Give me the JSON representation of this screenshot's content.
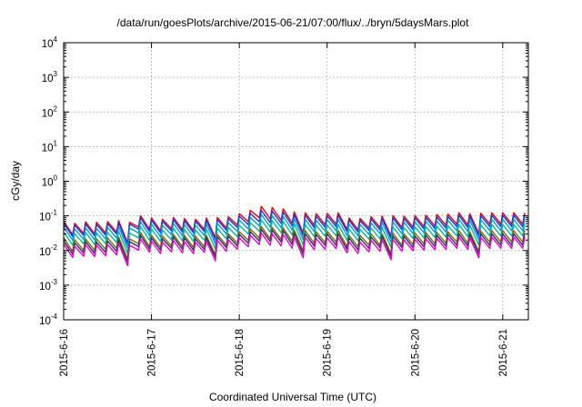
{
  "chart_data": {
    "type": "line",
    "title": "/data/run/goesPlots/archive/2015-06-21/07:00/flux/../bryn/5daysMars.plot",
    "xlabel": "Coordinated Universal Time (UTC)",
    "ylabel": "cGy/day",
    "yscale": "log",
    "ylim": [
      0.0001,
      10000
    ],
    "xlim": [
      "2015-06-16 00:00",
      "2015-06-21 07:00"
    ],
    "x_ticks": [
      "2015-6-16",
      "2015-6-17",
      "2015-6-18",
      "2015-6-19",
      "2015-6-20",
      "2015-6-21"
    ],
    "y_ticks": [
      {
        "base": "10",
        "exp": "4"
      },
      {
        "base": "10",
        "exp": "3"
      },
      {
        "base": "10",
        "exp": "2"
      },
      {
        "base": "10",
        "exp": "1"
      },
      {
        "base": "10",
        "exp": "0"
      },
      {
        "base": "10",
        "exp": "-1"
      },
      {
        "base": "10",
        "exp": "-2"
      },
      {
        "base": "10",
        "exp": "-3"
      },
      {
        "base": "10",
        "exp": "-4"
      }
    ],
    "grid": true,
    "legend": "none",
    "sample_interval_hours": 3,
    "series": [
      {
        "color": "#ee0000",
        "values": [
          0.048,
          0.042,
          0.046,
          0.045,
          0.047,
          0.05,
          0.045,
          0.07,
          0.06,
          0.055,
          0.062,
          0.058,
          0.055,
          0.06,
          0.062,
          0.065,
          0.08,
          0.1,
          0.13,
          0.12,
          0.11,
          0.09,
          0.085,
          0.08,
          0.082,
          0.085,
          0.06,
          0.058,
          0.065,
          0.068,
          0.07,
          0.068,
          0.07,
          0.072,
          0.075,
          0.078,
          0.085,
          0.08,
          0.082,
          0.085,
          0.085,
          0.085,
          0.085
        ]
      },
      {
        "color": "#2233dd",
        "values": [
          0.042,
          0.037,
          0.04,
          0.039,
          0.041,
          0.044,
          0.04,
          0.061,
          0.052,
          0.048,
          0.054,
          0.05,
          0.048,
          0.052,
          0.054,
          0.057,
          0.068,
          0.082,
          0.1,
          0.095,
          0.09,
          0.075,
          0.072,
          0.068,
          0.07,
          0.072,
          0.052,
          0.05,
          0.056,
          0.058,
          0.06,
          0.058,
          0.06,
          0.062,
          0.064,
          0.066,
          0.072,
          0.068,
          0.07,
          0.072,
          0.072,
          0.072,
          0.072
        ]
      },
      {
        "color": "#0099ee",
        "values": [
          0.033,
          0.029,
          0.031,
          0.03,
          0.032,
          0.034,
          0.031,
          0.047,
          0.04,
          0.037,
          0.042,
          0.039,
          0.037,
          0.04,
          0.042,
          0.044,
          0.052,
          0.062,
          0.075,
          0.07,
          0.067,
          0.057,
          0.055,
          0.052,
          0.054,
          0.055,
          0.04,
          0.039,
          0.043,
          0.045,
          0.046,
          0.045,
          0.046,
          0.048,
          0.049,
          0.051,
          0.055,
          0.052,
          0.054,
          0.055,
          0.055,
          0.055,
          0.055
        ]
      },
      {
        "color": "#00bb99",
        "values": [
          0.024,
          0.021,
          0.023,
          0.022,
          0.023,
          0.025,
          0.022,
          0.034,
          0.029,
          0.027,
          0.03,
          0.028,
          0.027,
          0.029,
          0.03,
          0.032,
          0.037,
          0.044,
          0.053,
          0.05,
          0.048,
          0.041,
          0.039,
          0.037,
          0.038,
          0.039,
          0.029,
          0.028,
          0.031,
          0.032,
          0.033,
          0.032,
          0.033,
          0.034,
          0.035,
          0.036,
          0.039,
          0.037,
          0.038,
          0.039,
          0.039,
          0.039,
          0.039
        ]
      },
      {
        "color": "#886600",
        "values": [
          0.016,
          0.014,
          0.015,
          0.015,
          0.016,
          0.017,
          0.015,
          0.023,
          0.019,
          0.018,
          0.02,
          0.019,
          0.018,
          0.019,
          0.02,
          0.021,
          0.024,
          0.029,
          0.034,
          0.032,
          0.031,
          0.027,
          0.026,
          0.024,
          0.025,
          0.026,
          0.019,
          0.019,
          0.021,
          0.021,
          0.022,
          0.021,
          0.022,
          0.023,
          0.023,
          0.024,
          0.026,
          0.024,
          0.025,
          0.026,
          0.026,
          0.026,
          0.026
        ]
      },
      {
        "color": "#223366",
        "values": [
          0.013,
          0.0115,
          0.0125,
          0.012,
          0.013,
          0.014,
          0.0125,
          0.019,
          0.016,
          0.015,
          0.017,
          0.016,
          0.015,
          0.016,
          0.017,
          0.018,
          0.02,
          0.024,
          0.028,
          0.027,
          0.026,
          0.022,
          0.021,
          0.02,
          0.021,
          0.021,
          0.016,
          0.0155,
          0.017,
          0.018,
          0.018,
          0.018,
          0.018,
          0.019,
          0.019,
          0.02,
          0.021,
          0.02,
          0.021,
          0.021,
          0.021,
          0.021,
          0.021
        ]
      },
      {
        "color": "#ee00cc",
        "values": [
          0.0105,
          0.0092,
          0.01,
          0.0098,
          0.0103,
          0.011,
          0.0098,
          0.015,
          0.013,
          0.012,
          0.0135,
          0.0125,
          0.012,
          0.013,
          0.0135,
          0.014,
          0.016,
          0.019,
          0.022,
          0.021,
          0.02,
          0.017,
          0.0165,
          0.0155,
          0.016,
          0.0165,
          0.0125,
          0.012,
          0.0135,
          0.014,
          0.0145,
          0.014,
          0.0145,
          0.015,
          0.0155,
          0.016,
          0.017,
          0.016,
          0.0165,
          0.017,
          0.017,
          0.017,
          0.017
        ]
      }
    ]
  }
}
